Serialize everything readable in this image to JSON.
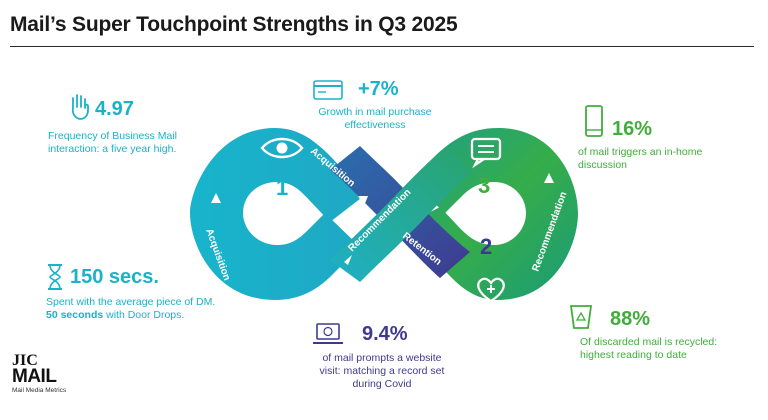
{
  "title": "Mail’s Super Touchpoint Strengths in Q3 2025",
  "colors": {
    "teal": "#1ab2c9",
    "navy": "#3f3a8f",
    "green": "#3fae3a"
  },
  "loop": {
    "numbers": [
      "1",
      "2",
      "3"
    ],
    "labels": {
      "acquisition_left": "Acquisition",
      "acquisition_top": "Acquisition",
      "recommendation_center": "Recommendation",
      "retention": "Retention",
      "recommendation_right": "Recommendation"
    },
    "icons": [
      "eye-icon",
      "speech-bubble-icon",
      "heart-plus-icon"
    ]
  },
  "stats": {
    "frequency": {
      "value": "4.97",
      "text": "Frequency of Business Mail interaction: a five year high.",
      "icon": "hand-icon"
    },
    "time": {
      "value": "150 secs.",
      "text_pre": "Spent with the average piece of DM. ",
      "text_bold": "50 seconds",
      "text_post": " with Door Drops.",
      "icon": "hourglass-icon"
    },
    "growth": {
      "value": "+7%",
      "text": "Growth in mail purchase effectiveness",
      "icon": "credit-card-icon"
    },
    "discussion": {
      "value": "16%",
      "text": "of mail triggers an in-home discussion",
      "icon": "smartphone-icon"
    },
    "website": {
      "value": "9.4%",
      "text": "of mail prompts a website visit: matching a record set during Covid",
      "icon": "laptop-icon"
    },
    "recycled": {
      "value": "88%",
      "text": "Of discarded mail is recycled: highest reading to date",
      "icon": "recycle-bin-icon"
    }
  },
  "logo": {
    "top": "JIC",
    "main": "MAIL",
    "sub": "Mail Media Metrics"
  }
}
